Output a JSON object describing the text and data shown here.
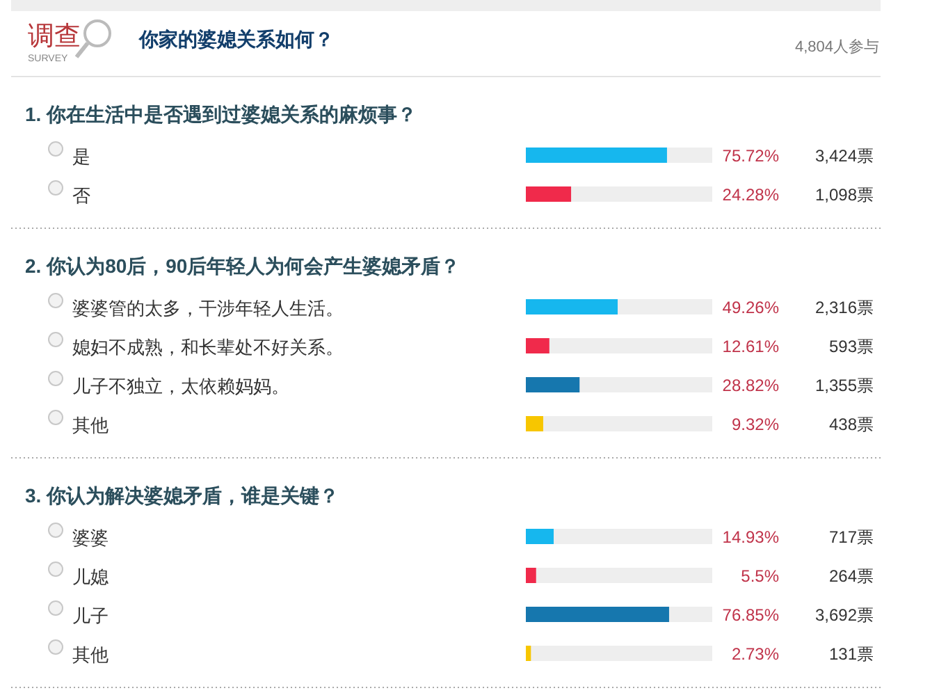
{
  "chart_data": [
    {
      "type": "other",
      "title": "你家的婆媳关系如何？",
      "annotations": [
        "调查",
        "SURVEY",
        "4,804人参与"
      ]
    },
    {
      "type": "bar",
      "orientation": "horizontal",
      "title": "1. 你在生活中是否遇到过婆媳关系的麻烦事？",
      "categories": [
        "是",
        "否"
      ],
      "values": [
        75.72,
        24.28
      ],
      "colors": [
        "#16b7ee",
        "#f02a4b"
      ],
      "value_labels": [
        "75.72%",
        "24.28%"
      ],
      "xlim": [
        0,
        100
      ],
      "annotations": [
        "3,424票",
        "1,098票"
      ]
    },
    {
      "type": "bar",
      "orientation": "horizontal",
      "title": "2. 你认为80后，90后年轻人为何会产生婆媳矛盾？",
      "categories": [
        "婆婆管的太多，干涉年轻人生活。",
        "媳妇不成熟，和长辈处不好关系。",
        "儿子不独立，太依赖妈妈。",
        "其他"
      ],
      "values": [
        49.26,
        12.61,
        28.82,
        9.32
      ],
      "colors": [
        "#16b7ee",
        "#f02a4b",
        "#1677ae",
        "#f7c600"
      ],
      "value_labels": [
        "49.26%",
        "12.61%",
        "28.82%",
        "9.32%"
      ],
      "xlim": [
        0,
        100
      ],
      "annotations": [
        "2,316票",
        "593票",
        "1,355票",
        "438票"
      ]
    },
    {
      "type": "bar",
      "orientation": "horizontal",
      "title": "3. 你认为解决婆媳矛盾，谁是关键？",
      "categories": [
        "婆婆",
        "儿媳",
        "儿子",
        "其他"
      ],
      "values": [
        14.93,
        5.5,
        76.85,
        2.73
      ],
      "colors": [
        "#16b7ee",
        "#f02a4b",
        "#1677ae",
        "#f7c600"
      ],
      "value_labels": [
        "14.93%",
        "5.5%",
        "76.85%",
        "2.73%"
      ],
      "xlim": [
        0,
        100
      ],
      "annotations": [
        "717票",
        "264票",
        "3,692票",
        "131票"
      ]
    }
  ]
}
